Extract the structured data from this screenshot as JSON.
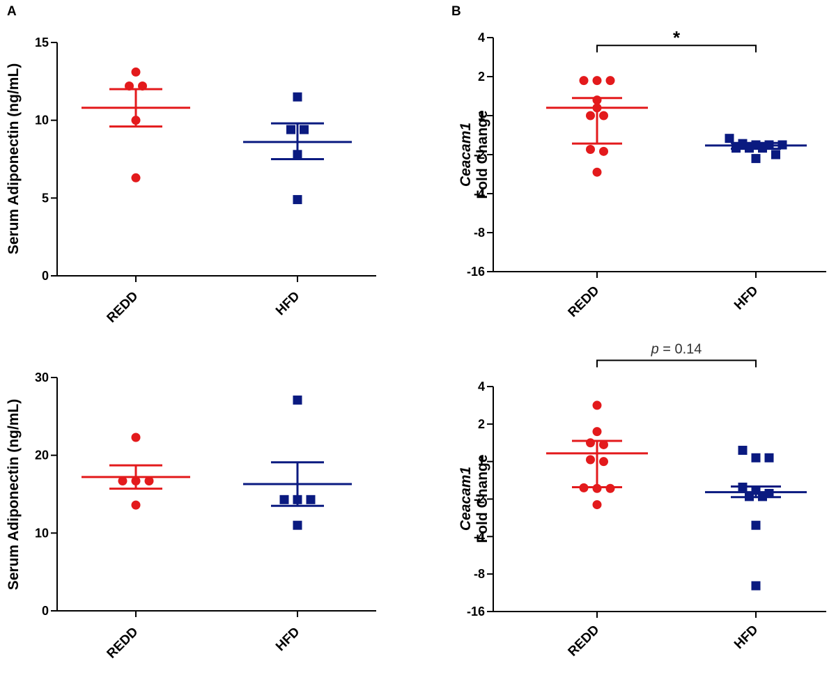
{
  "panel_labels": [
    "A",
    "B"
  ],
  "colors": {
    "REDD": "#e31a1c",
    "HFD": "#0a1a80",
    "axis": "#000000"
  },
  "chart_data": [
    {
      "id": "topA",
      "type": "scatter",
      "panel_label": "A",
      "ylabel": "Serum Adiponectin (ng/mL)",
      "ylabel_italic": "",
      "categories": [
        "REDD",
        "HFD"
      ],
      "ylim": [
        0,
        15
      ],
      "yscale": "linear",
      "yticks": [
        "0",
        "5",
        "10",
        "15"
      ],
      "ytick_values": [
        0,
        5,
        10,
        15
      ],
      "series": [
        {
          "name": "REDD",
          "marker": "circle",
          "points": [
            13.1,
            12.2,
            12.2,
            10.0,
            6.3
          ],
          "mean": 10.8,
          "sem_low": 9.6,
          "sem_high": 12.0
        },
        {
          "name": "HFD",
          "marker": "square",
          "points": [
            11.5,
            9.4,
            9.4,
            7.8,
            4.9
          ],
          "mean": 8.6,
          "sem_low": 7.5,
          "sem_high": 9.8
        }
      ],
      "annotation": null
    },
    {
      "id": "topB",
      "type": "scatter",
      "panel_label": "B",
      "ylabel": "Fold Change",
      "ylabel_italic": "Ceacam1",
      "categories": [
        "REDD",
        "HFD"
      ],
      "yscale": "custom",
      "yticks": [
        "4",
        "2",
        "1",
        "-2",
        "-4",
        "-8",
        "-16"
      ],
      "ytick_values": [
        4,
        2,
        1,
        -2,
        -4,
        -8,
        -16
      ],
      "series": [
        {
          "name": "REDD",
          "marker": "circle",
          "points": [
            1.9,
            1.9,
            1.9,
            1.4,
            1.2,
            1.0,
            1.0,
            -1.6,
            -1.75,
            -2.9
          ],
          "mean": 1.2,
          "sem_low": -1.15,
          "sem_high": 1.45
        },
        {
          "name": "HFD",
          "marker": "square",
          "points": [
            -0.75,
            -1.15,
            -1.25,
            -1.25,
            -1.25,
            -1.5,
            -1.5,
            -1.5,
            -2.0,
            -2.2
          ],
          "mean": -1.3,
          "sem_low": -1.55,
          "sem_high": -1.1
        }
      ],
      "annotation": {
        "text": "*",
        "from": "REDD",
        "to": "HFD",
        "value": 3.6
      }
    },
    {
      "id": "botA",
      "type": "scatter",
      "panel_label": "",
      "ylabel": "Serum Adiponectin (ng/mL)",
      "ylabel_italic": "",
      "categories": [
        "REDD",
        "HFD"
      ],
      "ylim": [
        0,
        30
      ],
      "yscale": "linear",
      "yticks": [
        "0",
        "10",
        "20",
        "30"
      ],
      "ytick_values": [
        0,
        10,
        20,
        30
      ],
      "series": [
        {
          "name": "REDD",
          "marker": "circle",
          "points": [
            22.3,
            16.7,
            16.7,
            16.7,
            13.6
          ],
          "mean": 17.2,
          "sem_low": 15.7,
          "sem_high": 18.7
        },
        {
          "name": "HFD",
          "marker": "square",
          "points": [
            27.1,
            14.3,
            14.3,
            14.3,
            11.0
          ],
          "mean": 16.3,
          "sem_low": 13.5,
          "sem_high": 19.1
        }
      ],
      "annotation": null
    },
    {
      "id": "botB",
      "type": "scatter",
      "panel_label": "",
      "ylabel": "Fold Change",
      "ylabel_italic": "Ceacam1",
      "categories": [
        "REDD",
        "HFD"
      ],
      "yscale": "custom",
      "yticks": [
        "4",
        "2",
        "1",
        "-2",
        "-4",
        "-8",
        "-16"
      ],
      "ytick_values": [
        4,
        2,
        1,
        -2,
        -4,
        -8,
        -16
      ],
      "series": [
        {
          "name": "REDD",
          "marker": "circle",
          "points": [
            3.0,
            1.8,
            1.5,
            1.45,
            1.05,
            1.0,
            -1.1,
            -1.15,
            -1.15,
            -2.3
          ],
          "mean": 1.22,
          "sem_low": -1.05,
          "sem_high": 1.55
        },
        {
          "name": "HFD",
          "marker": "square",
          "points": [
            1.3,
            1.1,
            1.1,
            -1.05,
            -1.3,
            -1.55,
            -1.8,
            -1.8,
            -3.4,
            -10.5
          ],
          "mean": -1.45,
          "sem_low": -1.85,
          "sem_high": -1.0
        }
      ],
      "annotation": {
        "text": "p = 0.14",
        "p_label": "p",
        "p_value": "0.14",
        "from": "REDD",
        "to": "HFD",
        "value": 5.4
      }
    }
  ]
}
